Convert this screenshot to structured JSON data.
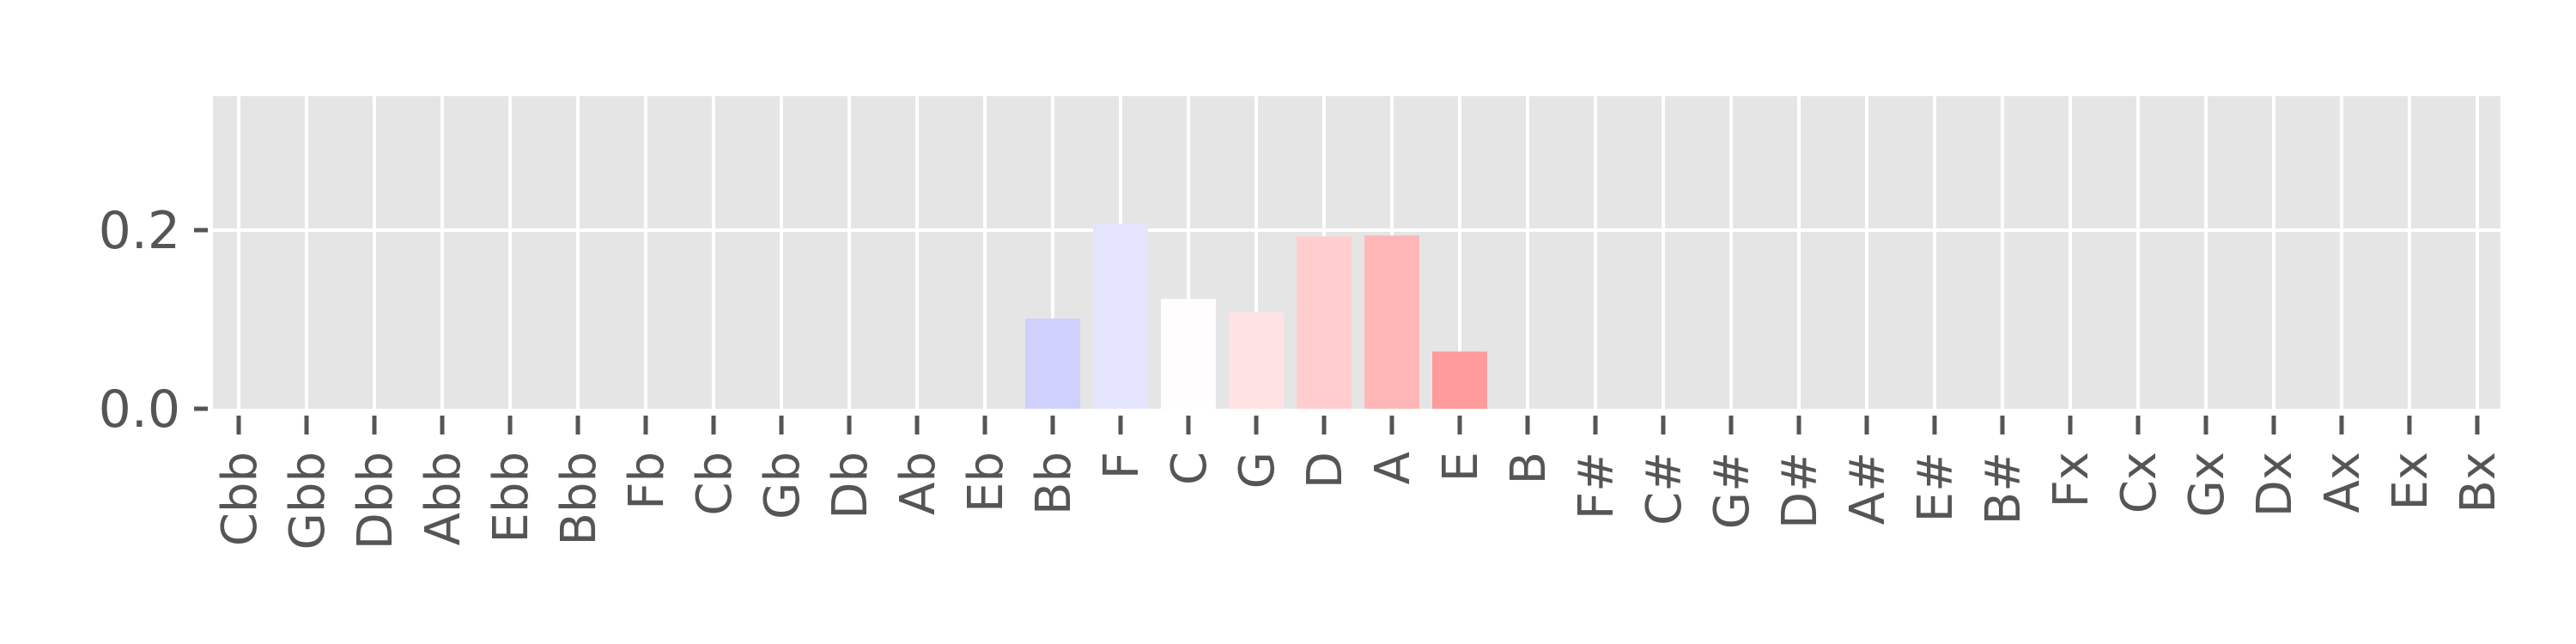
{
  "chart_data": {
    "type": "bar",
    "categories": [
      "Cbb",
      "Gbb",
      "Dbb",
      "Abb",
      "Ebb",
      "Bbb",
      "Fb",
      "Cb",
      "Gb",
      "Db",
      "Ab",
      "Eb",
      "Bb",
      "F",
      "C",
      "G",
      "D",
      "A",
      "E",
      "B",
      "F#",
      "C#",
      "G#",
      "D#",
      "A#",
      "E#",
      "B#",
      "Fx",
      "Cx",
      "Gx",
      "Dx",
      "Ax",
      "Ex",
      "Bx"
    ],
    "values": [
      0,
      0,
      0,
      0,
      0,
      0,
      0,
      0,
      0,
      0,
      0,
      0,
      0.101,
      0.207,
      0.123,
      0.108,
      0.193,
      0.194,
      0.064,
      0,
      0,
      0,
      0,
      0,
      0,
      0,
      0,
      0,
      0,
      0,
      0,
      0,
      0,
      0
    ],
    "bar_colors": [
      "#ffffff",
      "#ffffff",
      "#ffffff",
      "#ffffff",
      "#ffffff",
      "#ffffff",
      "#ffffff",
      "#ffffff",
      "#ffffff",
      "#ffffff",
      "#ffffff",
      "#ffffff",
      "#d0d0ff",
      "#e4e4ff",
      "#fffdfd",
      "#ffe2e4",
      "#ffcdcd",
      "#ffb6b6",
      "#ff9b9b",
      "#ffffff",
      "#ffffff",
      "#ffffff",
      "#ffffff",
      "#ffffff",
      "#ffffff",
      "#ffffff",
      "#ffffff",
      "#ffffff",
      "#ffffff",
      "#ffffff",
      "#ffffff",
      "#ffffff",
      "#ffffff",
      "#ffffff"
    ],
    "y_ticks": [
      0.0,
      0.2
    ],
    "y_tick_labels": [
      "0.0",
      "0.2"
    ],
    "ylim": [
      0,
      0.35
    ],
    "title": "",
    "xlabel": "",
    "ylabel": "",
    "grid": true,
    "background_color": "#e5e5e5",
    "grid_color": "#ffffff",
    "tick_color": "#555555"
  }
}
